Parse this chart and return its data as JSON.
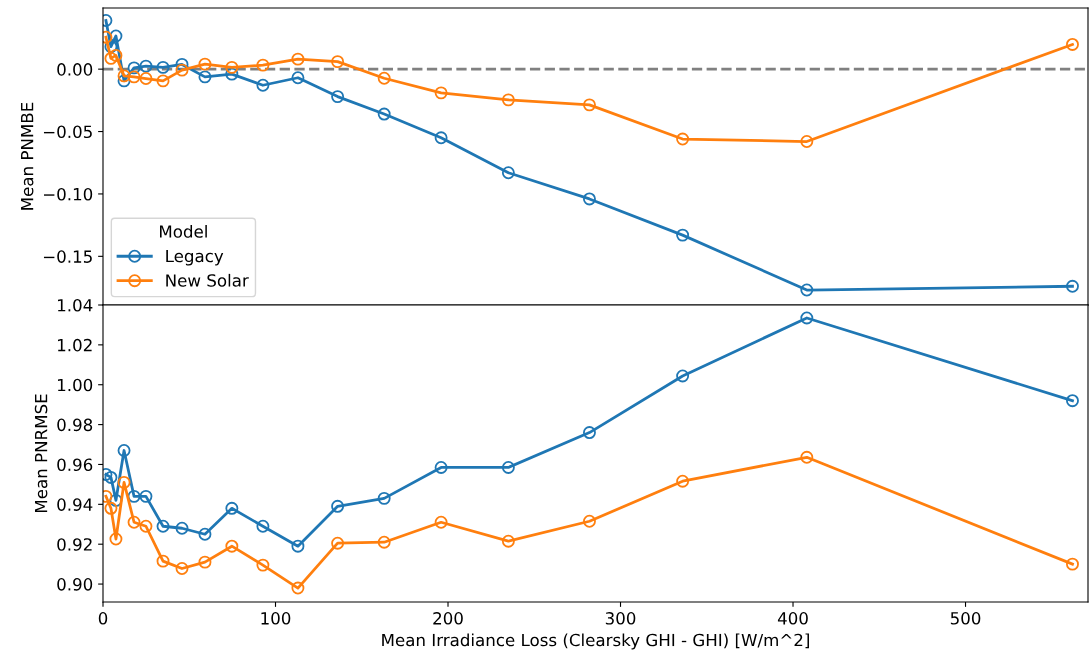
{
  "chart_data": [
    {
      "type": "line",
      "ylabel": "Mean PNMBE",
      "xlim": [
        0,
        571
      ],
      "ylim": [
        -0.189,
        0.049
      ],
      "yticks": [
        {
          "value": -0.15,
          "label": "−0.15"
        },
        {
          "value": -0.1,
          "label": "−0.10"
        },
        {
          "value": -0.05,
          "label": "−0.05"
        },
        {
          "value": 0,
          "label": "0.00"
        }
      ],
      "x": [
        1.7,
        4.6,
        7.5,
        12.2,
        18,
        24.9,
        34.8,
        45.8,
        59.1,
        74.7,
        92.7,
        113,
        136,
        163,
        196,
        235,
        282,
        336,
        408,
        562
      ],
      "series": [
        {
          "name": "Legacy",
          "color": "#1f77b4",
          "values": [
            0.039,
            0.018,
            0.0266,
            -0.0094,
            0.001,
            0.0024,
            0.0014,
            0.0038,
            -0.0062,
            -0.004,
            -0.0129,
            -0.0069,
            -0.022,
            -0.036,
            -0.055,
            -0.083,
            -0.104,
            -0.133,
            -0.177,
            -0.174
          ]
        },
        {
          "name": "New Solar",
          "color": "#ff7f0e",
          "values": [
            0.0256,
            0.0086,
            0.011,
            -0.0054,
            -0.0062,
            -0.0075,
            -0.0094,
            -0.0008,
            0.004,
            0.0014,
            0.0032,
            0.008,
            0.006,
            -0.0073,
            -0.019,
            -0.0246,
            -0.0286,
            -0.056,
            -0.058,
            0.0198
          ]
        }
      ],
      "ref_lines": [
        {
          "axis": "y",
          "value": 0,
          "color": "#808080",
          "line_style": "dashed"
        }
      ],
      "marker": "circle",
      "legend": "bottom left",
      "legend_title": "Model",
      "tick_labels": "y"
    },
    {
      "type": "line",
      "ylabel": "Mean PNRMSE",
      "xlabel": "Mean Irradiance Loss (Clearsky GHI - GHI) [W/m^2]",
      "xlim": [
        0,
        571
      ],
      "ylim": [
        0.891,
        1.04
      ],
      "xticks": [
        0,
        100,
        200,
        300,
        400,
        500
      ],
      "yticks": [
        {
          "value": 0.9,
          "label": "0.90"
        },
        {
          "value": 0.92,
          "label": "0.92"
        },
        {
          "value": 0.94,
          "label": "0.94"
        },
        {
          "value": 0.96,
          "label": "0.96"
        },
        {
          "value": 0.98,
          "label": "0.98"
        },
        {
          "value": 1.0,
          "label": "1.00"
        },
        {
          "value": 1.02,
          "label": "1.02"
        },
        {
          "value": 1.04,
          "label": "1.04"
        }
      ],
      "x": [
        1.7,
        4.6,
        7.5,
        12.2,
        18,
        24.9,
        34.8,
        45.8,
        59.1,
        74.7,
        92.7,
        113,
        136,
        163,
        196,
        235,
        282,
        336,
        408,
        562
      ],
      "series": [
        {
          "color": "#1f77b4",
          "values": [
            0.955,
            0.9535,
            0.942,
            0.967,
            0.944,
            0.944,
            0.929,
            0.928,
            0.925,
            0.938,
            0.929,
            0.919,
            0.939,
            0.943,
            0.9585,
            0.9585,
            0.976,
            1.0044,
            1.0335,
            0.992
          ]
        },
        {
          "color": "#ff7f0e",
          "values": [
            0.944,
            0.938,
            0.9226,
            0.951,
            0.931,
            0.929,
            0.9115,
            0.9078,
            0.911,
            0.919,
            0.9095,
            0.898,
            0.9205,
            0.921,
            0.931,
            0.9215,
            0.9315,
            0.9516,
            0.9636,
            0.91
          ]
        }
      ],
      "marker": "circle"
    }
  ]
}
